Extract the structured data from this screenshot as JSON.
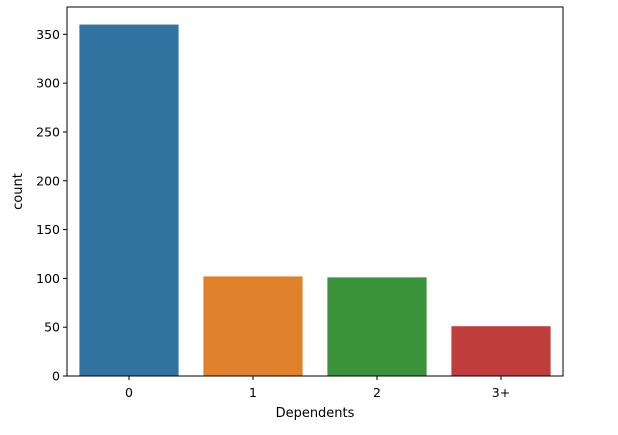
{
  "chart_data": {
    "type": "bar",
    "title": "",
    "xlabel": "Dependents",
    "ylabel": "count",
    "categories": [
      "0",
      "1",
      "2",
      "3+"
    ],
    "values": [
      360,
      102,
      101,
      51
    ],
    "colors": [
      "#3274a1",
      "#e1812c",
      "#3a923a",
      "#c03d3e"
    ],
    "ylim": [
      0,
      378
    ],
    "yticks": [
      0,
      50,
      100,
      150,
      200,
      250,
      300,
      350
    ],
    "grid": false,
    "legend": "none"
  }
}
